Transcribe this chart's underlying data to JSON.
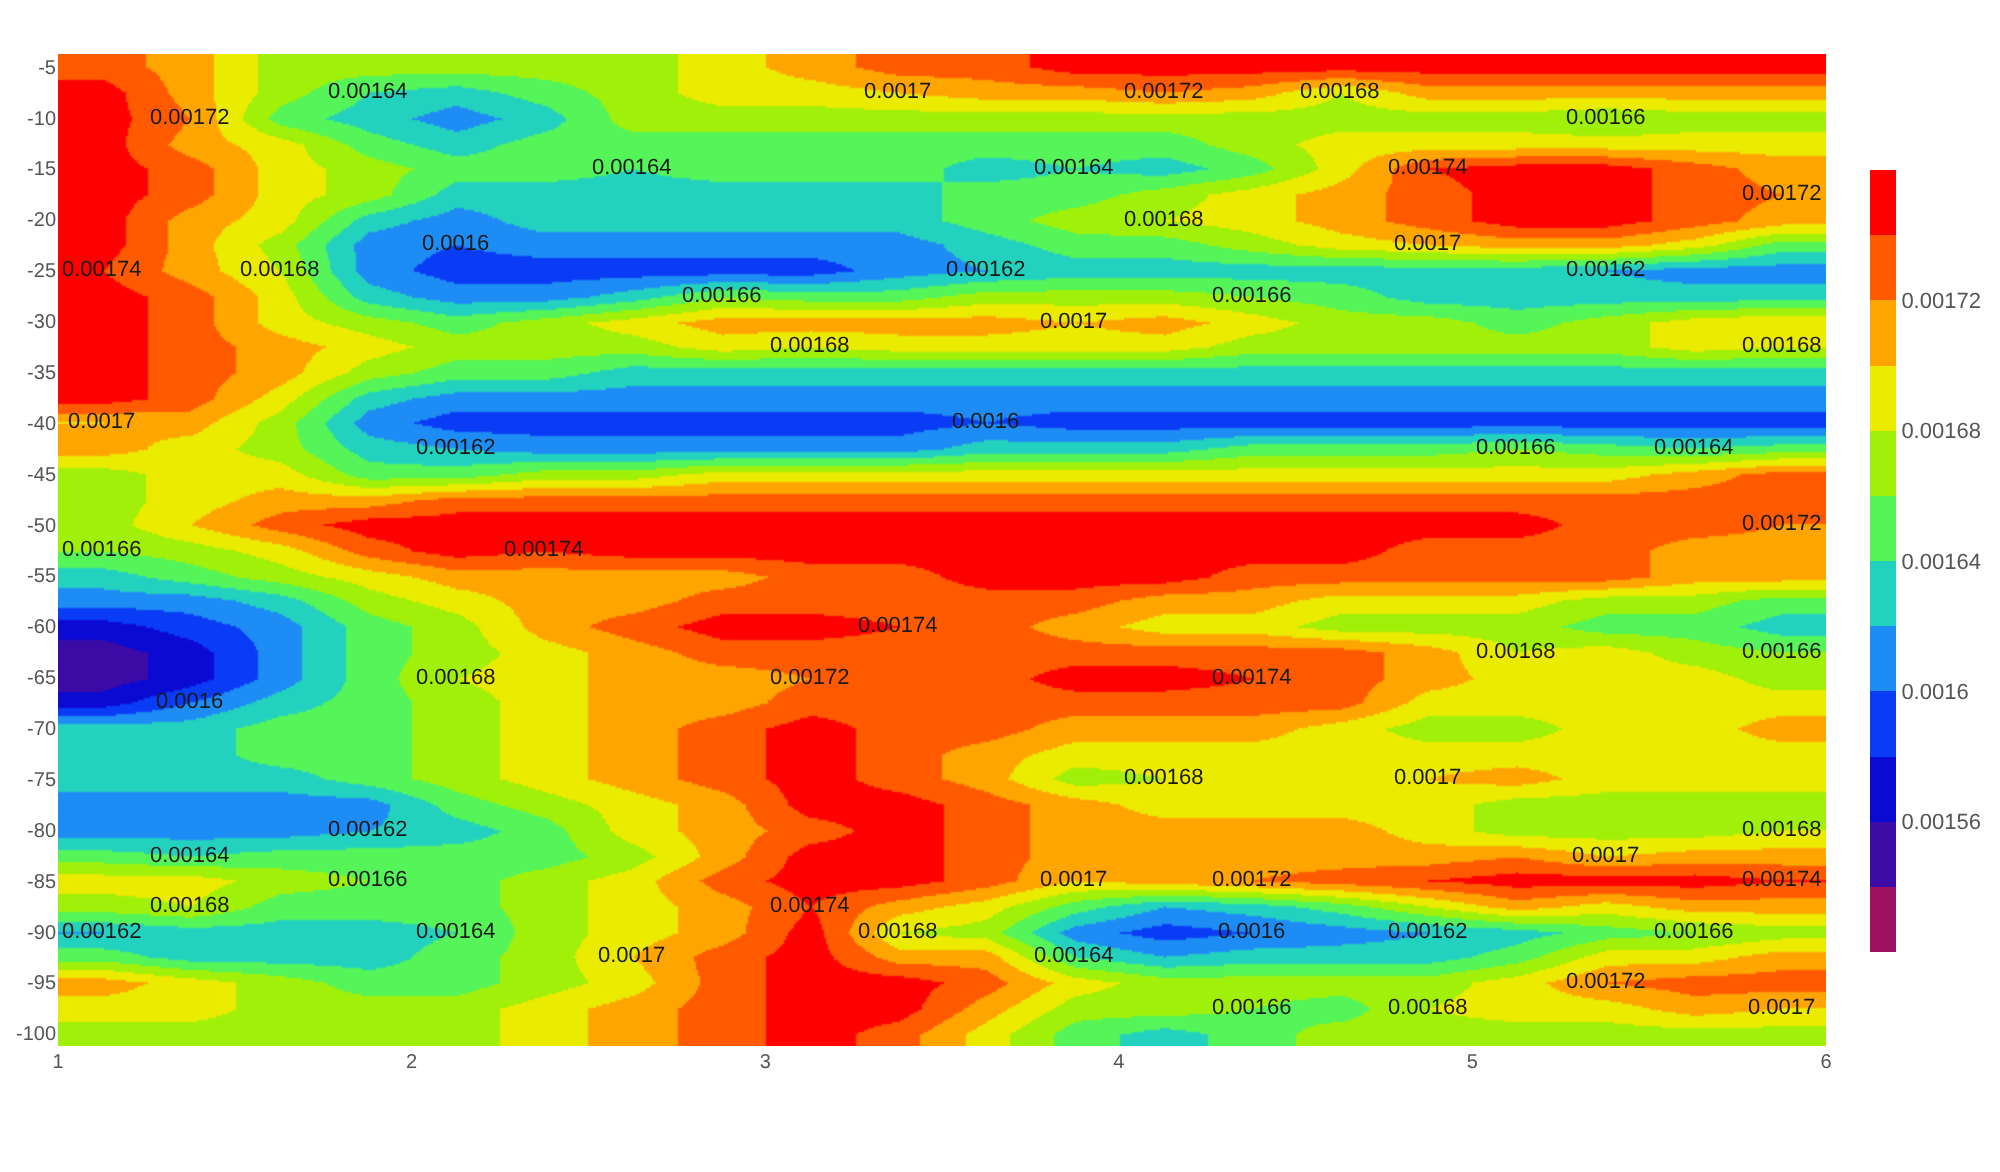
{
  "chart_data": {
    "type": "heatmap",
    "x": [
      1.125,
      1.375,
      1.625,
      1.875,
      2.125,
      2.375,
      2.625,
      2.875,
      3.125,
      3.375,
      3.625,
      3.875,
      4.125,
      4.375,
      4.625,
      4.875,
      5.125,
      5.375,
      5.625,
      5.875
    ],
    "xlim": [
      1,
      6
    ],
    "xticks": [
      1,
      2,
      3,
      4,
      5,
      6
    ],
    "y_categories": [
      "-5",
      null,
      "-10",
      null,
      "-15",
      null,
      "-20",
      null,
      "-25",
      null,
      "-30",
      null,
      "-35",
      null,
      "-40",
      null,
      "-45",
      null,
      "-50",
      null,
      "-55",
      null,
      "-60",
      null,
      "-65",
      null,
      "-70",
      null,
      "-75",
      null,
      "-80",
      null,
      "-85",
      null,
      "-90",
      null,
      "-95",
      null,
      "-100"
    ],
    "cells": [
      [
        0.00173,
        0.00171,
        0.00167,
        0.00167,
        0.00167,
        0.00167,
        0.00167,
        0.00169,
        0.00171,
        0.00173,
        0.00173,
        0.00175,
        0.00175,
        0.00175,
        0.00175,
        0.00175,
        0.00175,
        0.00175,
        0.00175,
        0.00175
      ],
      [
        0.00175,
        0.00171,
        0.00167,
        0.00164,
        0.00163,
        0.00165,
        0.00167,
        0.00169,
        0.00169,
        0.0017,
        0.00171,
        0.00171,
        0.00172,
        0.00171,
        0.00168,
        0.00171,
        0.00171,
        0.00171,
        0.00171,
        0.00171
      ],
      [
        0.00175,
        0.00172,
        0.00165,
        0.00163,
        0.00161,
        0.00163,
        0.00167,
        0.00167,
        0.00167,
        0.00167,
        0.00167,
        0.00167,
        0.00167,
        0.00167,
        0.00167,
        0.00167,
        0.00167,
        0.00166,
        0.00167,
        0.00167
      ],
      [
        0.00175,
        0.00171,
        0.00169,
        0.00165,
        0.00163,
        0.00165,
        0.00165,
        0.00165,
        0.00165,
        0.00165,
        0.00165,
        0.00165,
        0.00165,
        0.00167,
        0.00169,
        0.00169,
        0.00169,
        0.00169,
        0.00169,
        0.00169
      ],
      [
        0.00175,
        0.00173,
        0.00169,
        0.00167,
        0.00165,
        0.00165,
        0.00164,
        0.00165,
        0.00165,
        0.00165,
        0.00163,
        0.00164,
        0.00163,
        0.00165,
        0.00169,
        0.00174,
        0.00175,
        0.00175,
        0.00173,
        0.00171
      ],
      [
        0.00175,
        0.00173,
        0.00169,
        0.00167,
        0.00163,
        0.00163,
        0.00163,
        0.00163,
        0.00163,
        0.00163,
        0.00165,
        0.00165,
        0.00167,
        0.00169,
        0.00171,
        0.00173,
        0.00175,
        0.00175,
        0.00173,
        0.00172
      ],
      [
        0.00175,
        0.00171,
        0.00169,
        0.00163,
        0.00161,
        0.00163,
        0.00163,
        0.00163,
        0.00163,
        0.00163,
        0.00165,
        0.00167,
        0.00168,
        0.00169,
        0.00171,
        0.00173,
        0.00175,
        0.00175,
        0.00173,
        0.00171
      ],
      [
        0.00175,
        0.00171,
        0.00167,
        0.00161,
        0.0016,
        0.00161,
        0.00161,
        0.00161,
        0.00161,
        0.00161,
        0.00163,
        0.00165,
        0.00165,
        0.00167,
        0.00169,
        0.0017,
        0.00171,
        0.00171,
        0.00169,
        0.00165
      ],
      [
        0.00174,
        0.00171,
        0.00168,
        0.00161,
        0.00159,
        0.00159,
        0.00159,
        0.00159,
        0.00159,
        0.00161,
        0.00162,
        0.00163,
        0.00163,
        0.00163,
        0.00163,
        0.00163,
        0.00163,
        0.00162,
        0.00161,
        0.00161
      ],
      [
        0.00175,
        0.00173,
        0.00169,
        0.00163,
        0.00161,
        0.00161,
        0.00163,
        0.00166,
        0.00165,
        0.00165,
        0.00167,
        0.00167,
        0.00167,
        0.00166,
        0.00165,
        0.00163,
        0.00163,
        0.00163,
        0.00163,
        0.00163
      ],
      [
        0.00175,
        0.00173,
        0.00169,
        0.00167,
        0.00165,
        0.00167,
        0.00169,
        0.00171,
        0.00171,
        0.00171,
        0.00171,
        0.0017,
        0.00171,
        0.00169,
        0.00167,
        0.00167,
        0.00165,
        0.00167,
        0.00169,
        0.0017
      ],
      [
        0.00175,
        0.00173,
        0.00171,
        0.00169,
        0.00167,
        0.00167,
        0.00167,
        0.00169,
        0.00168,
        0.00169,
        0.00169,
        0.00169,
        0.00169,
        0.00167,
        0.00167,
        0.00167,
        0.00167,
        0.00167,
        0.00169,
        0.00168
      ],
      [
        0.00175,
        0.00173,
        0.00171,
        0.00167,
        0.00165,
        0.00165,
        0.00163,
        0.00163,
        0.00163,
        0.00163,
        0.00163,
        0.00163,
        0.00163,
        0.00163,
        0.00163,
        0.00163,
        0.00163,
        0.00163,
        0.00163,
        0.00163
      ],
      [
        0.00175,
        0.00173,
        0.00169,
        0.00163,
        0.00161,
        0.00161,
        0.00161,
        0.00161,
        0.00161,
        0.00161,
        0.00161,
        0.00161,
        0.00161,
        0.00161,
        0.00161,
        0.00161,
        0.00161,
        0.00161,
        0.00161,
        0.00161
      ],
      [
        0.0017,
        0.00171,
        0.00167,
        0.00161,
        0.00159,
        0.00159,
        0.00159,
        0.00159,
        0.00159,
        0.00159,
        0.0016,
        0.00159,
        0.00159,
        0.00159,
        0.00159,
        0.00159,
        0.00159,
        0.00159,
        0.00159,
        0.00159
      ],
      [
        0.00171,
        0.00169,
        0.00167,
        0.00163,
        0.00162,
        0.00161,
        0.00161,
        0.00161,
        0.00161,
        0.00161,
        0.00163,
        0.00163,
        0.00163,
        0.00165,
        0.00165,
        0.00165,
        0.00166,
        0.00165,
        0.00164,
        0.00165
      ],
      [
        0.00167,
        0.00169,
        0.00169,
        0.00165,
        0.00165,
        0.00167,
        0.00167,
        0.00169,
        0.00169,
        0.00169,
        0.00169,
        0.00169,
        0.00169,
        0.00169,
        0.00169,
        0.00169,
        0.00169,
        0.00169,
        0.00171,
        0.00173
      ],
      [
        0.00167,
        0.00169,
        0.00171,
        0.00171,
        0.00173,
        0.00173,
        0.00173,
        0.00173,
        0.00173,
        0.00173,
        0.00173,
        0.00173,
        0.00173,
        0.00173,
        0.00173,
        0.00173,
        0.00173,
        0.00173,
        0.00173,
        0.00173
      ],
      [
        0.00167,
        0.0017,
        0.00173,
        0.00175,
        0.00175,
        0.00175,
        0.00175,
        0.00175,
        0.00175,
        0.00175,
        0.00175,
        0.00175,
        0.00175,
        0.00175,
        0.00175,
        0.00175,
        0.00175,
        0.00173,
        0.00173,
        0.00172
      ],
      [
        0.00166,
        0.00167,
        0.00169,
        0.00173,
        0.00175,
        0.00174,
        0.00175,
        0.00175,
        0.00175,
        0.00175,
        0.00175,
        0.00175,
        0.00175,
        0.00175,
        0.00175,
        0.00173,
        0.00173,
        0.00173,
        0.00171,
        0.00171
      ],
      [
        0.00163,
        0.00165,
        0.00167,
        0.00169,
        0.00171,
        0.00171,
        0.00171,
        0.00171,
        0.00173,
        0.00173,
        0.00175,
        0.00175,
        0.00175,
        0.00173,
        0.00173,
        0.00173,
        0.00173,
        0.00173,
        0.00171,
        0.00171
      ],
      [
        0.00161,
        0.00161,
        0.00163,
        0.00167,
        0.00169,
        0.00171,
        0.00171,
        0.00173,
        0.00173,
        0.00173,
        0.00173,
        0.00173,
        0.00171,
        0.00171,
        0.00169,
        0.00169,
        0.00169,
        0.00167,
        0.00167,
        0.00165
      ],
      [
        0.00157,
        0.00159,
        0.00161,
        0.00165,
        0.00167,
        0.00171,
        0.00173,
        0.00175,
        0.00175,
        0.00174,
        0.00173,
        0.00171,
        0.00169,
        0.00169,
        0.00167,
        0.00167,
        0.00167,
        0.00165,
        0.00165,
        0.00163
      ],
      [
        0.00155,
        0.00157,
        0.00161,
        0.00165,
        0.00167,
        0.00169,
        0.00171,
        0.00173,
        0.00173,
        0.00173,
        0.00173,
        0.00173,
        0.00173,
        0.00173,
        0.00173,
        0.00171,
        0.00168,
        0.00169,
        0.00167,
        0.00166
      ],
      [
        0.00155,
        0.00157,
        0.00161,
        0.00165,
        0.00168,
        0.00169,
        0.00171,
        0.00171,
        0.00172,
        0.00173,
        0.00173,
        0.00175,
        0.00175,
        0.00174,
        0.00173,
        0.00171,
        0.00169,
        0.00169,
        0.00169,
        0.00167
      ],
      [
        0.00157,
        0.0016,
        0.00163,
        0.00165,
        0.00167,
        0.00169,
        0.00171,
        0.00171,
        0.00173,
        0.00173,
        0.00173,
        0.00173,
        0.00173,
        0.00173,
        0.00173,
        0.00169,
        0.00169,
        0.00169,
        0.00169,
        0.00169
      ],
      [
        0.00163,
        0.00163,
        0.00165,
        0.00165,
        0.00167,
        0.00169,
        0.00171,
        0.00173,
        0.00175,
        0.00173,
        0.00173,
        0.00171,
        0.00171,
        0.00171,
        0.00169,
        0.00167,
        0.00167,
        0.00169,
        0.00169,
        0.00171
      ],
      [
        0.00163,
        0.00163,
        0.00165,
        0.00165,
        0.00167,
        0.00169,
        0.00171,
        0.00173,
        0.00175,
        0.00173,
        0.00171,
        0.00169,
        0.00169,
        0.00169,
        0.00169,
        0.00169,
        0.00169,
        0.00169,
        0.00169,
        0.00169
      ],
      [
        0.00163,
        0.00163,
        0.00163,
        0.00165,
        0.00167,
        0.00169,
        0.00171,
        0.00173,
        0.00175,
        0.00173,
        0.00171,
        0.00167,
        0.00168,
        0.00169,
        0.00169,
        0.0017,
        0.00171,
        0.00169,
        0.00169,
        0.00169
      ],
      [
        0.00161,
        0.00161,
        0.00161,
        0.00161,
        0.00165,
        0.00167,
        0.00169,
        0.00171,
        0.00175,
        0.00175,
        0.00173,
        0.00171,
        0.00169,
        0.00169,
        0.00169,
        0.00169,
        0.00167,
        0.00167,
        0.00167,
        0.00167
      ],
      [
        0.00161,
        0.00161,
        0.00161,
        0.00162,
        0.00163,
        0.00165,
        0.00169,
        0.00171,
        0.00173,
        0.00175,
        0.00173,
        0.00171,
        0.00171,
        0.00171,
        0.00171,
        0.00169,
        0.00167,
        0.00167,
        0.00167,
        0.00168
      ],
      [
        0.00165,
        0.00164,
        0.00165,
        0.00165,
        0.00165,
        0.00165,
        0.00167,
        0.00171,
        0.00175,
        0.00175,
        0.00173,
        0.00171,
        0.00171,
        0.00171,
        0.00171,
        0.00171,
        0.00172,
        0.0017,
        0.00171,
        0.00171
      ],
      [
        0.00169,
        0.00169,
        0.00167,
        0.00166,
        0.00165,
        0.00167,
        0.00169,
        0.00173,
        0.00175,
        0.00175,
        0.00173,
        0.0017,
        0.00171,
        0.00172,
        0.00173,
        0.00174,
        0.00175,
        0.00175,
        0.00175,
        0.00174
      ],
      [
        0.00167,
        0.00168,
        0.00165,
        0.00165,
        0.00165,
        0.00167,
        0.00169,
        0.00171,
        0.00174,
        0.00171,
        0.00169,
        0.00165,
        0.00162,
        0.00163,
        0.00165,
        0.00168,
        0.00171,
        0.00169,
        0.00171,
        0.00171
      ],
      [
        0.00162,
        0.00163,
        0.00163,
        0.00163,
        0.00164,
        0.00167,
        0.00169,
        0.00171,
        0.00175,
        0.00168,
        0.00167,
        0.00161,
        0.00159,
        0.0016,
        0.00161,
        0.00162,
        0.00163,
        0.00165,
        0.00166,
        0.00167
      ],
      [
        0.00165,
        0.00163,
        0.00163,
        0.00163,
        0.00165,
        0.00167,
        0.0017,
        0.00173,
        0.00175,
        0.00171,
        0.00171,
        0.00164,
        0.00162,
        0.00163,
        0.00163,
        0.00163,
        0.00165,
        0.00169,
        0.00169,
        0.00171
      ],
      [
        0.00171,
        0.00169,
        0.00167,
        0.00165,
        0.00165,
        0.00167,
        0.00169,
        0.00173,
        0.00175,
        0.00175,
        0.00173,
        0.00169,
        0.00167,
        0.00167,
        0.00167,
        0.00167,
        0.00169,
        0.00172,
        0.00173,
        0.00173
      ],
      [
        0.00169,
        0.00169,
        0.00167,
        0.00167,
        0.00167,
        0.00169,
        0.00171,
        0.00173,
        0.00175,
        0.00175,
        0.00171,
        0.00167,
        0.00167,
        0.00166,
        0.00165,
        0.00168,
        0.00169,
        0.00169,
        0.00171,
        0.0017
      ],
      [
        0.00167,
        0.00167,
        0.00167,
        0.00167,
        0.00167,
        0.00169,
        0.00171,
        0.00173,
        0.00175,
        0.00173,
        0.00169,
        0.00165,
        0.00163,
        0.00165,
        0.00167,
        0.00167,
        0.00167,
        0.00167,
        0.00167,
        0.00167
      ]
    ],
    "cell_labels": [
      [
        null,
        null,
        null,
        null,
        null,
        null,
        null,
        null,
        null,
        null,
        null,
        null,
        null,
        null,
        null,
        null,
        null,
        null,
        null,
        null
      ],
      [
        null,
        null,
        null,
        "0.00164",
        null,
        null,
        null,
        null,
        null,
        "0.0017",
        null,
        null,
        "0.00172",
        null,
        "0.00168",
        null,
        null,
        null,
        null,
        null
      ],
      [
        null,
        "0.00172",
        null,
        null,
        null,
        null,
        null,
        null,
        null,
        null,
        null,
        null,
        null,
        null,
        null,
        null,
        null,
        "0.00166",
        null,
        null
      ],
      [
        null,
        null,
        null,
        null,
        null,
        null,
        null,
        null,
        null,
        null,
        null,
        null,
        null,
        null,
        null,
        null,
        null,
        null,
        null,
        null
      ],
      [
        null,
        null,
        null,
        null,
        null,
        null,
        "0.00164",
        null,
        null,
        null,
        null,
        "0.00164",
        null,
        null,
        null,
        "0.00174",
        null,
        null,
        null,
        null
      ],
      [
        null,
        null,
        null,
        null,
        null,
        null,
        null,
        null,
        null,
        null,
        null,
        null,
        null,
        null,
        null,
        null,
        null,
        null,
        null,
        "0.00172"
      ],
      [
        null,
        null,
        null,
        null,
        null,
        null,
        null,
        null,
        null,
        null,
        null,
        null,
        "0.00168",
        null,
        null,
        null,
        null,
        null,
        null,
        null
      ],
      [
        null,
        null,
        null,
        null,
        "0.0016",
        null,
        null,
        null,
        null,
        null,
        null,
        null,
        null,
        null,
        null,
        "0.0017",
        null,
        null,
        null,
        null
      ],
      [
        "0.00174",
        null,
        "0.00168",
        null,
        null,
        null,
        null,
        null,
        null,
        null,
        "0.00162",
        null,
        null,
        null,
        null,
        null,
        null,
        "0.00162",
        null,
        null
      ],
      [
        null,
        null,
        null,
        null,
        null,
        null,
        null,
        "0.00166",
        null,
        null,
        null,
        null,
        null,
        "0.00166",
        null,
        null,
        null,
        null,
        null,
        null
      ],
      [
        null,
        null,
        null,
        null,
        null,
        null,
        null,
        null,
        null,
        null,
        null,
        "0.0017",
        null,
        null,
        null,
        null,
        null,
        null,
        null,
        null
      ],
      [
        null,
        null,
        null,
        null,
        null,
        null,
        null,
        null,
        "0.00168",
        null,
        null,
        null,
        null,
        null,
        null,
        null,
        null,
        null,
        null,
        "0.00168"
      ],
      [
        null,
        null,
        null,
        null,
        null,
        null,
        null,
        null,
        null,
        null,
        null,
        null,
        null,
        null,
        null,
        null,
        null,
        null,
        null,
        null
      ],
      [
        null,
        null,
        null,
        null,
        null,
        null,
        null,
        null,
        null,
        null,
        null,
        null,
        null,
        null,
        null,
        null,
        null,
        null,
        null,
        null
      ],
      [
        "0.0017",
        null,
        null,
        null,
        null,
        null,
        null,
        null,
        null,
        null,
        "0.0016",
        null,
        null,
        null,
        null,
        null,
        null,
        null,
        null,
        null
      ],
      [
        null,
        null,
        null,
        null,
        "0.00162",
        null,
        null,
        null,
        null,
        null,
        null,
        null,
        null,
        null,
        null,
        null,
        "0.00166",
        null,
        "0.00164",
        null
      ],
      [
        null,
        null,
        null,
        null,
        null,
        null,
        null,
        null,
        null,
        null,
        null,
        null,
        null,
        null,
        null,
        null,
        null,
        null,
        null,
        null
      ],
      [
        null,
        null,
        null,
        null,
        null,
        null,
        null,
        null,
        null,
        null,
        null,
        null,
        null,
        null,
        null,
        null,
        null,
        null,
        null,
        null
      ],
      [
        null,
        null,
        null,
        null,
        null,
        null,
        null,
        null,
        null,
        null,
        null,
        null,
        null,
        null,
        null,
        null,
        null,
        null,
        null,
        "0.00172"
      ],
      [
        "0.00166",
        null,
        null,
        null,
        null,
        "0.00174",
        null,
        null,
        null,
        null,
        null,
        null,
        null,
        null,
        null,
        null,
        null,
        null,
        null,
        null
      ],
      [
        null,
        null,
        null,
        null,
        null,
        null,
        null,
        null,
        null,
        null,
        null,
        null,
        null,
        null,
        null,
        null,
        null,
        null,
        null,
        null
      ],
      [
        null,
        null,
        null,
        null,
        null,
        null,
        null,
        null,
        null,
        null,
        null,
        null,
        null,
        null,
        null,
        null,
        null,
        null,
        null,
        null
      ],
      [
        null,
        null,
        null,
        null,
        null,
        null,
        null,
        null,
        null,
        "0.00174",
        null,
        null,
        null,
        null,
        null,
        null,
        null,
        null,
        null,
        null
      ],
      [
        null,
        null,
        null,
        null,
        null,
        null,
        null,
        null,
        null,
        null,
        null,
        null,
        null,
        null,
        null,
        null,
        "0.00168",
        null,
        null,
        "0.00166"
      ],
      [
        null,
        null,
        null,
        null,
        "0.00168",
        null,
        null,
        null,
        "0.00172",
        null,
        null,
        null,
        null,
        "0.00174",
        null,
        null,
        null,
        null,
        null,
        null
      ],
      [
        null,
        "0.0016",
        null,
        null,
        null,
        null,
        null,
        null,
        null,
        null,
        null,
        null,
        null,
        null,
        null,
        null,
        null,
        null,
        null,
        null
      ],
      [
        null,
        null,
        null,
        null,
        null,
        null,
        null,
        null,
        null,
        null,
        null,
        null,
        null,
        null,
        null,
        null,
        null,
        null,
        null,
        null
      ],
      [
        null,
        null,
        null,
        null,
        null,
        null,
        null,
        null,
        null,
        null,
        null,
        null,
        null,
        null,
        null,
        null,
        null,
        null,
        null,
        null
      ],
      [
        null,
        null,
        null,
        null,
        null,
        null,
        null,
        null,
        null,
        null,
        null,
        null,
        "0.00168",
        null,
        null,
        "0.0017",
        null,
        null,
        null,
        null
      ],
      [
        null,
        null,
        null,
        null,
        null,
        null,
        null,
        null,
        null,
        null,
        null,
        null,
        null,
        null,
        null,
        null,
        null,
        null,
        null,
        null
      ],
      [
        null,
        null,
        null,
        "0.00162",
        null,
        null,
        null,
        null,
        null,
        null,
        null,
        null,
        null,
        null,
        null,
        null,
        null,
        null,
        null,
        "0.00168"
      ],
      [
        null,
        "0.00164",
        null,
        null,
        null,
        null,
        null,
        null,
        null,
        null,
        null,
        null,
        null,
        null,
        null,
        null,
        null,
        "0.0017",
        null,
        null
      ],
      [
        null,
        null,
        null,
        "0.00166",
        null,
        null,
        null,
        null,
        null,
        null,
        null,
        "0.0017",
        null,
        "0.00172",
        null,
        null,
        null,
        null,
        null,
        "0.00174"
      ],
      [
        null,
        "0.00168",
        null,
        null,
        null,
        null,
        null,
        null,
        "0.00174",
        null,
        null,
        null,
        null,
        null,
        null,
        null,
        null,
        null,
        null,
        null
      ],
      [
        "0.00162",
        null,
        null,
        null,
        "0.00164",
        null,
        null,
        null,
        null,
        "0.00168",
        null,
        null,
        null,
        "0.0016",
        null,
        "0.00162",
        null,
        null,
        "0.00166",
        null
      ],
      [
        null,
        null,
        null,
        null,
        null,
        null,
        "0.0017",
        null,
        null,
        null,
        null,
        "0.00164",
        null,
        null,
        null,
        null,
        null,
        null,
        null,
        null
      ],
      [
        null,
        null,
        null,
        null,
        null,
        null,
        null,
        null,
        null,
        null,
        null,
        null,
        null,
        null,
        null,
        null,
        null,
        "0.00172",
        null,
        null
      ],
      [
        null,
        null,
        null,
        null,
        null,
        null,
        null,
        null,
        null,
        null,
        null,
        null,
        null,
        "0.00166",
        null,
        "0.00168",
        null,
        null,
        null,
        "0.0017"
      ],
      [
        null,
        null,
        null,
        null,
        null,
        null,
        null,
        null,
        null,
        null,
        null,
        null,
        null,
        null,
        null,
        null,
        null,
        null,
        null,
        null
      ]
    ],
    "clim": [
      0.00152,
      0.00176
    ],
    "cticks": [
      0.00156,
      0.0016,
      0.00164,
      0.00168,
      0.00172
    ],
    "colors": [
      "#9e1060",
      "#3c0aa5",
      "#0a0ad2",
      "#0a3cf5",
      "#1e8cf5",
      "#23d2be",
      "#55f55a",
      "#a0f00a",
      "#ebeb00",
      "#ffa500",
      "#ff5a00",
      "#ff0000"
    ]
  }
}
